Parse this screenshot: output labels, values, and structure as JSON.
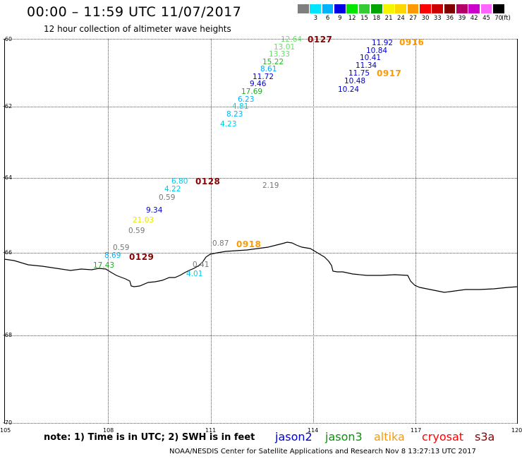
{
  "header": {
    "title": "00:00 – 11:59 UTC 11/07/2017",
    "subtitle": "12 hour collection of altimeter wave heights"
  },
  "legend": {
    "items": [
      {
        "label": "",
        "color": "#7f7f7f"
      },
      {
        "label": "3",
        "color": "#00e5ff"
      },
      {
        "label": "6",
        "color": "#00b3ff"
      },
      {
        "label": "9",
        "color": "#0000e6"
      },
      {
        "label": "12",
        "color": "#00e600"
      },
      {
        "label": "15",
        "color": "#33cc33"
      },
      {
        "label": "18",
        "color": "#00a600"
      },
      {
        "label": "21",
        "color": "#f5f500"
      },
      {
        "label": "24",
        "color": "#ffd700"
      },
      {
        "label": "27",
        "color": "#ff9900"
      },
      {
        "label": "30",
        "color": "#ff0000"
      },
      {
        "label": "33",
        "color": "#cc0000"
      },
      {
        "label": "36",
        "color": "#800000"
      },
      {
        "label": "39",
        "color": "#b30066"
      },
      {
        "label": "42",
        "color": "#cc00cc"
      },
      {
        "label": "45",
        "color": "#ff66ff"
      },
      {
        "label": "70",
        "color": "#000000"
      }
    ],
    "unit": "(ft)"
  },
  "axes": {
    "lat_labels": [
      "-60",
      "-62",
      "-64",
      "-66",
      "-68",
      "-70"
    ],
    "lon_labels": [
      "105",
      "108",
      "111",
      "114",
      "117",
      "120"
    ]
  },
  "passes": [
    {
      "label": "0127",
      "color": "#8b0000"
    },
    {
      "label": "0916",
      "color": "#ff9900"
    },
    {
      "label": "0917",
      "color": "#ff9900"
    },
    {
      "label": "0128",
      "color": "#8b0000"
    },
    {
      "label": "0918",
      "color": "#ff9900"
    },
    {
      "label": "0129",
      "color": "#8b0000"
    }
  ],
  "wave_values": [
    {
      "text": "12.64",
      "color": "#66dd66"
    },
    {
      "text": "13.01",
      "color": "#66dd66"
    },
    {
      "text": "13.33",
      "color": "#66dd66"
    },
    {
      "text": "15.22",
      "color": "#22bb22"
    },
    {
      "text": "8.61",
      "color": "#00a6ff"
    },
    {
      "text": "11.72",
      "color": "#0000cc"
    },
    {
      "text": "9.46",
      "color": "#0000cc"
    },
    {
      "text": "17.69",
      "color": "#22aa22"
    },
    {
      "text": "6.23",
      "color": "#00b3ff"
    },
    {
      "text": "4.81",
      "color": "#00ccee"
    },
    {
      "text": "8.23",
      "color": "#00b3ff"
    },
    {
      "text": "4.23",
      "color": "#00ccee"
    },
    {
      "text": "11.92",
      "color": "#0000cc"
    },
    {
      "text": "10.84",
      "color": "#0000cc"
    },
    {
      "text": "10.41",
      "color": "#0000cc"
    },
    {
      "text": "11.34",
      "color": "#0000cc"
    },
    {
      "text": "11.75",
      "color": "#0000cc"
    },
    {
      "text": "10.48",
      "color": "#0000cc"
    },
    {
      "text": "10.24",
      "color": "#0000cc"
    },
    {
      "text": "6.80",
      "color": "#00ccee"
    },
    {
      "text": "4.22",
      "color": "#00ccee"
    },
    {
      "text": "0.59",
      "color": "#777777"
    },
    {
      "text": "9.34",
      "color": "#0000cc"
    },
    {
      "text": "21.03",
      "color": "#e6e600"
    },
    {
      "text": "0.59",
      "color": "#777777"
    },
    {
      "text": "0.59",
      "color": "#777777"
    },
    {
      "text": "8.69",
      "color": "#00b3ff"
    },
    {
      "text": "17.43",
      "color": "#22aa22"
    },
    {
      "text": "2.19",
      "color": "#777777"
    },
    {
      "text": "0.87",
      "color": "#777777"
    },
    {
      "text": "0.41",
      "color": "#777777"
    },
    {
      "text": "4.01",
      "color": "#00ccee"
    }
  ],
  "footer": {
    "note": "note:  1) Time is in UTC;  2) SWH is in feet",
    "satellites": [
      {
        "label": "jason2",
        "color": "#0000cc"
      },
      {
        "label": "jason3",
        "color": "#009900"
      },
      {
        "label": "altika",
        "color": "#ff9900"
      },
      {
        "label": "cryosat",
        "color": "#ff0000"
      },
      {
        "label": "s3a",
        "color": "#8b0000"
      }
    ],
    "credit": "NOAA/NESDIS Center for Satellite Applications and Research     Nov  8 13:27:13 UTC 2017"
  }
}
